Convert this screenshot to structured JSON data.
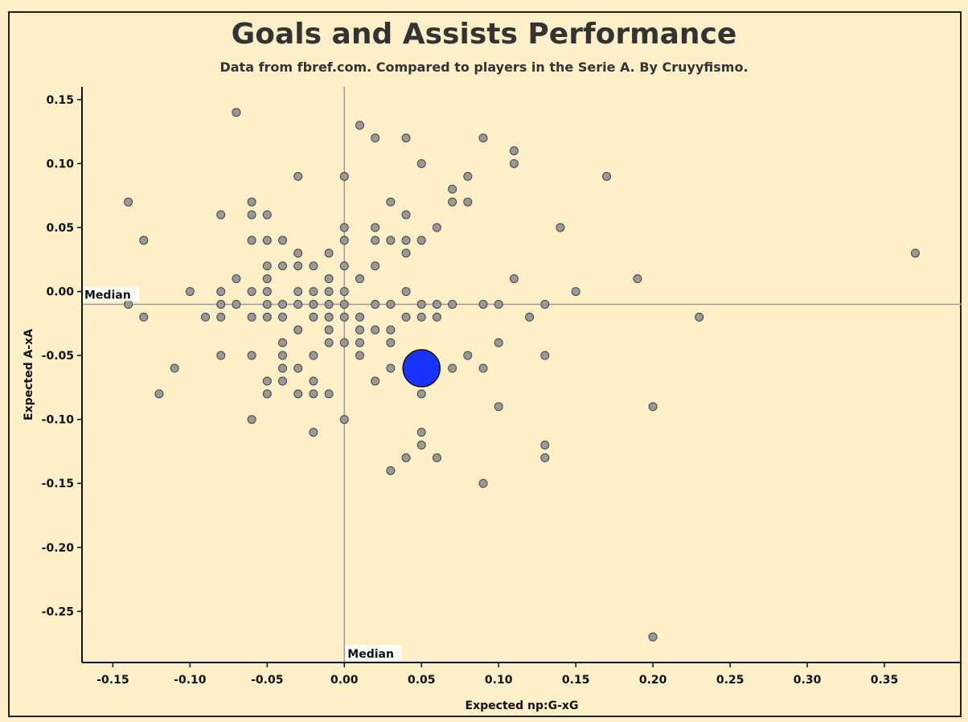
{
  "chart_data": {
    "type": "scatter",
    "title": "Goals and Assists Performance",
    "subtitle": "Data from fbref.com. Compared to players in the Serie A. By Cruyyfismo.",
    "xlabel": "Expected np:G-xG",
    "ylabel": "Expected A-xA",
    "xlim": [
      -0.17,
      0.4
    ],
    "ylim": [
      -0.29,
      0.16
    ],
    "x_ticks": [
      "-0.15",
      "-0.10",
      "-0.05",
      "0.00",
      "0.05",
      "0.10",
      "0.15",
      "0.20",
      "0.25",
      "0.30",
      "0.35"
    ],
    "y_ticks": [
      "0.15",
      "0.10",
      "0.05",
      "0.00",
      "-0.05",
      "-0.10",
      "-0.15",
      "-0.20",
      "-0.25"
    ],
    "grid": false,
    "median_x": 0.0,
    "median_y": -0.01,
    "median_x_label": "Median",
    "median_y_label": "Median",
    "colors": {
      "background": "#fdf0c8",
      "points": "#999999",
      "highlight": "#1a33ff",
      "median_line": "#999999"
    },
    "highlight": {
      "x": 0.05,
      "y": -0.06
    },
    "points": [
      [
        -0.07,
        0.14
      ],
      [
        0.01,
        0.13
      ],
      [
        0.02,
        0.12
      ],
      [
        0.04,
        0.12
      ],
      [
        0.09,
        0.12
      ],
      [
        0.11,
        0.11
      ],
      [
        0.11,
        0.1
      ],
      [
        0.05,
        0.1
      ],
      [
        -0.03,
        0.09
      ],
      [
        0.0,
        0.09
      ],
      [
        0.08,
        0.09
      ],
      [
        0.17,
        0.09
      ],
      [
        0.07,
        0.08
      ],
      [
        -0.14,
        0.07
      ],
      [
        -0.06,
        0.07
      ],
      [
        0.03,
        0.07
      ],
      [
        0.07,
        0.07
      ],
      [
        0.08,
        0.07
      ],
      [
        -0.08,
        0.06
      ],
      [
        -0.06,
        0.06
      ],
      [
        -0.05,
        0.06
      ],
      [
        0.04,
        0.06
      ],
      [
        0.0,
        0.05
      ],
      [
        0.02,
        0.05
      ],
      [
        0.06,
        0.05
      ],
      [
        0.14,
        0.05
      ],
      [
        -0.13,
        0.04
      ],
      [
        -0.06,
        0.04
      ],
      [
        -0.04,
        0.04
      ],
      [
        -0.05,
        0.04
      ],
      [
        0.0,
        0.04
      ],
      [
        0.02,
        0.04
      ],
      [
        0.03,
        0.04
      ],
      [
        0.04,
        0.04
      ],
      [
        0.05,
        0.04
      ],
      [
        0.04,
        0.03
      ],
      [
        -0.03,
        0.03
      ],
      [
        -0.01,
        0.03
      ],
      [
        0.37,
        0.03
      ],
      [
        -0.05,
        0.02
      ],
      [
        -0.04,
        0.02
      ],
      [
        -0.03,
        0.02
      ],
      [
        -0.02,
        0.02
      ],
      [
        0.0,
        0.02
      ],
      [
        0.02,
        0.02
      ],
      [
        -0.07,
        0.01
      ],
      [
        -0.05,
        0.01
      ],
      [
        -0.01,
        0.01
      ],
      [
        0.01,
        0.01
      ],
      [
        0.11,
        0.01
      ],
      [
        0.19,
        0.01
      ],
      [
        -0.1,
        0.0
      ],
      [
        -0.08,
        0.0
      ],
      [
        -0.06,
        0.0
      ],
      [
        -0.05,
        0.0
      ],
      [
        -0.03,
        0.0
      ],
      [
        -0.02,
        0.0
      ],
      [
        -0.01,
        0.0
      ],
      [
        0.0,
        0.0
      ],
      [
        0.04,
        0.0
      ],
      [
        0.15,
        0.0
      ],
      [
        -0.14,
        -0.01
      ],
      [
        -0.08,
        -0.01
      ],
      [
        -0.07,
        -0.01
      ],
      [
        -0.05,
        -0.01
      ],
      [
        -0.04,
        -0.01
      ],
      [
        -0.03,
        -0.01
      ],
      [
        -0.02,
        -0.01
      ],
      [
        -0.01,
        -0.01
      ],
      [
        0.0,
        -0.01
      ],
      [
        0.02,
        -0.01
      ],
      [
        0.03,
        -0.01
      ],
      [
        0.05,
        -0.01
      ],
      [
        0.06,
        -0.01
      ],
      [
        0.07,
        -0.01
      ],
      [
        0.09,
        -0.01
      ],
      [
        0.1,
        -0.01
      ],
      [
        0.13,
        -0.01
      ],
      [
        -0.13,
        -0.02
      ],
      [
        -0.09,
        -0.02
      ],
      [
        -0.08,
        -0.02
      ],
      [
        -0.06,
        -0.02
      ],
      [
        -0.05,
        -0.02
      ],
      [
        -0.04,
        -0.02
      ],
      [
        -0.02,
        -0.02
      ],
      [
        -0.01,
        -0.02
      ],
      [
        0.0,
        -0.02
      ],
      [
        0.01,
        -0.02
      ],
      [
        0.04,
        -0.02
      ],
      [
        0.05,
        -0.02
      ],
      [
        0.06,
        -0.02
      ],
      [
        0.12,
        -0.02
      ],
      [
        0.23,
        -0.02
      ],
      [
        -0.03,
        -0.03
      ],
      [
        -0.01,
        -0.03
      ],
      [
        0.01,
        -0.03
      ],
      [
        0.02,
        -0.03
      ],
      [
        0.03,
        -0.03
      ],
      [
        -0.04,
        -0.04
      ],
      [
        -0.01,
        -0.04
      ],
      [
        0.0,
        -0.04
      ],
      [
        0.01,
        -0.04
      ],
      [
        0.03,
        -0.04
      ],
      [
        0.1,
        -0.04
      ],
      [
        -0.08,
        -0.05
      ],
      [
        -0.06,
        -0.05
      ],
      [
        -0.04,
        -0.05
      ],
      [
        -0.02,
        -0.05
      ],
      [
        0.01,
        -0.05
      ],
      [
        0.08,
        -0.05
      ],
      [
        0.13,
        -0.05
      ],
      [
        -0.11,
        -0.06
      ],
      [
        -0.04,
        -0.06
      ],
      [
        -0.03,
        -0.06
      ],
      [
        0.03,
        -0.06
      ],
      [
        0.07,
        -0.06
      ],
      [
        0.09,
        -0.06
      ],
      [
        -0.05,
        -0.07
      ],
      [
        -0.04,
        -0.07
      ],
      [
        -0.02,
        -0.07
      ],
      [
        0.02,
        -0.07
      ],
      [
        -0.12,
        -0.08
      ],
      [
        -0.05,
        -0.08
      ],
      [
        -0.03,
        -0.08
      ],
      [
        -0.02,
        -0.08
      ],
      [
        -0.01,
        -0.08
      ],
      [
        0.05,
        -0.08
      ],
      [
        0.1,
        -0.09
      ],
      [
        0.2,
        -0.09
      ],
      [
        -0.06,
        -0.1
      ],
      [
        0.0,
        -0.1
      ],
      [
        -0.02,
        -0.11
      ],
      [
        0.05,
        -0.11
      ],
      [
        0.05,
        -0.12
      ],
      [
        0.13,
        -0.12
      ],
      [
        0.04,
        -0.13
      ],
      [
        0.06,
        -0.13
      ],
      [
        0.13,
        -0.13
      ],
      [
        0.03,
        -0.14
      ],
      [
        0.09,
        -0.15
      ],
      [
        0.2,
        -0.27
      ]
    ]
  }
}
